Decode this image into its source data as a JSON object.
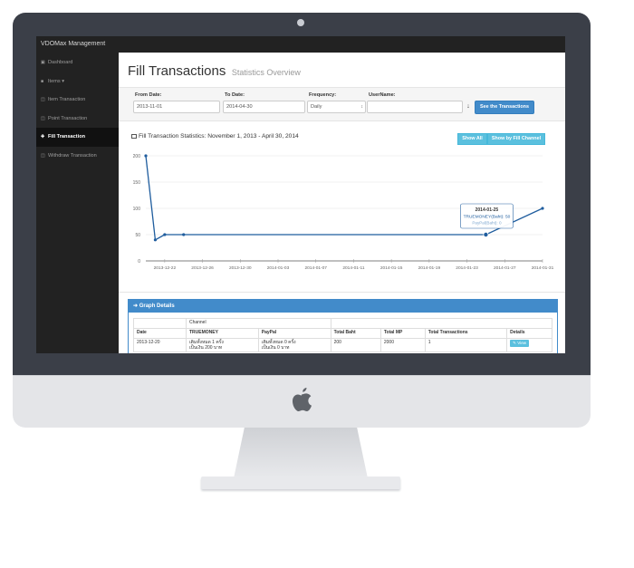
{
  "app": {
    "title": "VDOMax Management"
  },
  "sidebar": {
    "items": [
      {
        "label": "Dashboard",
        "icon": "dashboard-icon",
        "active": false
      },
      {
        "label": "Items ▾",
        "icon": "items-icon",
        "active": false
      },
      {
        "label": "Item Transaction",
        "icon": "item-transaction-icon",
        "active": false
      },
      {
        "label": "Point Transaction",
        "icon": "point-transaction-icon",
        "active": false
      },
      {
        "label": "Fill Transaction",
        "icon": "plus-icon",
        "active": true
      },
      {
        "label": "Withdraw Transaction",
        "icon": "withdraw-icon",
        "active": false
      }
    ]
  },
  "page": {
    "title": "Fill Transactions",
    "subtitle": "Statistics Overview"
  },
  "filters": {
    "from_label": "From Date:",
    "from_value": "2013-11-01",
    "to_label": "To Date:",
    "to_value": "2014-04-30",
    "frequency_label": "Frequency:",
    "frequency_value": "Daily",
    "username_label": "UserName:",
    "username_value": "",
    "submit_label": "See the Transactions"
  },
  "stats_panel": {
    "heading": "Fill Transaction Statistics: November 1, 2013 - April 30, 2014",
    "show_all_label": "Show All",
    "show_by_channel_label": "Show by Fill Channel"
  },
  "chart_data": {
    "type": "line",
    "ylim": [
      0,
      200
    ],
    "yticks": [
      0,
      50,
      100,
      150,
      200
    ],
    "xtick_labels": [
      "2013-12-22",
      "2013-12-26",
      "2013-12-30",
      "2014-01-03",
      "2014-01-07",
      "2014-01-11",
      "2014-01-15",
      "2014-01-19",
      "2014-01-23",
      "2014-01-27",
      "2014-01-31"
    ],
    "x": [
      "2013-12-20",
      "2013-12-21",
      "2013-12-22",
      "2013-12-24",
      "2014-01-25",
      "2014-01-31"
    ],
    "series": [
      {
        "values": [
          200,
          40,
          50,
          50,
          50,
          100
        ]
      }
    ],
    "tooltip": {
      "title": "2014-01-25",
      "line1": "TRUEMONEY(Baht): 50",
      "line2": "PayPal(Baht): 0"
    },
    "grid": true
  },
  "details": {
    "heading": "Graph Details",
    "channel_header": "Channel",
    "columns": [
      "Date",
      "TRUEMONEY",
      "PayPal",
      "Total Baht",
      "Total MP",
      "Total Transactions",
      "Details"
    ],
    "rows": [
      {
        "date": "2013-12-20",
        "truemoney_1": "เติมทั้งหมด 1 ครั้ง",
        "truemoney_2": "เป็นเงิน 200 บาท",
        "paypal_1": "เติมทั้งหมด 0 ครั้ง",
        "paypal_2": "เป็นเงิน 0 บาท",
        "total_baht": "200",
        "total_mp": "2000",
        "total_transactions": "1",
        "details_label": "✎ View"
      }
    ]
  }
}
